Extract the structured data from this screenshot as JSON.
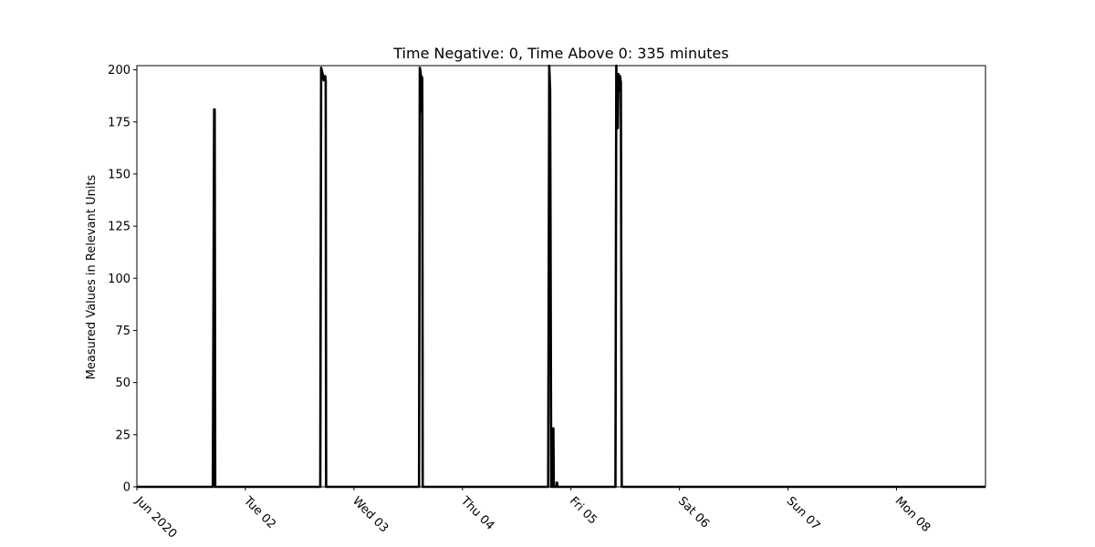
{
  "chart_data": {
    "type": "line",
    "title": "Time Negative: 0, Time Above 0: 335 minutes",
    "xlabel": "",
    "ylabel": "Measured Values in Relevant Units",
    "ylim": [
      0,
      202
    ],
    "xlim": [
      0,
      7.82
    ],
    "x_unit": "days since Jun 01 2020",
    "grid": false,
    "yticks": [
      0,
      25,
      50,
      75,
      100,
      125,
      150,
      175,
      200
    ],
    "xticks": [
      {
        "x": 0,
        "label": "Jun 2020"
      },
      {
        "x": 1,
        "label": "Tue 02"
      },
      {
        "x": 2,
        "label": "Wed 03"
      },
      {
        "x": 3,
        "label": "Thu 04"
      },
      {
        "x": 4,
        "label": "Fri 05"
      },
      {
        "x": 5,
        "label": "Sat 06"
      },
      {
        "x": 6,
        "label": "Sun 07"
      },
      {
        "x": 7,
        "label": "Mon 08"
      }
    ],
    "series": [
      {
        "name": "",
        "color": "#000000",
        "points": [
          [
            0,
            0
          ],
          [
            0.7,
            0
          ],
          [
            0.712,
            181
          ],
          [
            0.717,
            181
          ],
          [
            0.722,
            0
          ],
          [
            1.69,
            0
          ],
          [
            1.698,
            201
          ],
          [
            1.712,
            198
          ],
          [
            1.722,
            195
          ],
          [
            1.735,
            197
          ],
          [
            1.74,
            195
          ],
          [
            1.744,
            0
          ],
          [
            2.6,
            0
          ],
          [
            2.607,
            201
          ],
          [
            2.615,
            199
          ],
          [
            2.618,
            180
          ],
          [
            2.622,
            197
          ],
          [
            2.63,
            196
          ],
          [
            2.634,
            0
          ],
          [
            3.79,
            0
          ],
          [
            3.8,
            202
          ],
          [
            3.808,
            190
          ],
          [
            3.812,
            120
          ],
          [
            3.818,
            0
          ],
          [
            3.827,
            0
          ],
          [
            3.832,
            28
          ],
          [
            3.838,
            28
          ],
          [
            3.842,
            0
          ],
          [
            3.866,
            0
          ],
          [
            3.868,
            2
          ],
          [
            3.872,
            2
          ],
          [
            3.875,
            0
          ],
          [
            4.41,
            0
          ],
          [
            4.418,
            202
          ],
          [
            4.425,
            178
          ],
          [
            4.432,
            172
          ],
          [
            4.438,
            198
          ],
          [
            4.445,
            190
          ],
          [
            4.452,
            197
          ],
          [
            4.46,
            194
          ],
          [
            4.468,
            0
          ],
          [
            7.82,
            0
          ]
        ]
      }
    ]
  }
}
